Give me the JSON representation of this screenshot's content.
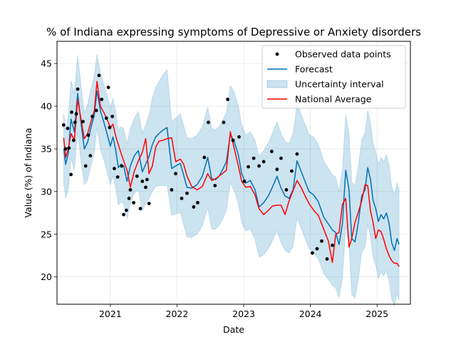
{
  "chart_data": {
    "type": "line",
    "title": "% of Indiana expressing symptoms of Depressive or Anxiety disorders",
    "xlabel": "Date",
    "ylabel": "Value (%) of Indiana",
    "xlim": [
      2020.2,
      2025.5
    ],
    "ylim": [
      16.8,
      47.6
    ],
    "xticks": [
      2021,
      2022,
      2023,
      2024,
      2025
    ],
    "xtick_labels": [
      "2021",
      "2022",
      "2023",
      "2024",
      "2025"
    ],
    "yticks": [
      20,
      25,
      30,
      35,
      40,
      45
    ],
    "ytick_labels": [
      "20",
      "25",
      "30",
      "35",
      "40",
      "45"
    ],
    "grid": true,
    "legend_position": "top-right",
    "colors": {
      "observed": "#000000",
      "forecast": "#0072B2",
      "band_fill": "#0072B2",
      "national": "#ff0000"
    },
    "legend": [
      {
        "label": "Observed data points",
        "kind": "marker",
        "color_key": "observed"
      },
      {
        "label": "Forecast",
        "kind": "line",
        "color_key": "forecast"
      },
      {
        "label": "Uncertainty interval",
        "kind": "patch",
        "color_key": "band_fill"
      },
      {
        "label": "National Average",
        "kind": "line",
        "color_key": "national"
      }
    ],
    "series": [
      {
        "name": "Observed data points",
        "style": "scatter",
        "points": [
          [
            2020.3,
            37.8
          ],
          [
            2020.33,
            35.0
          ],
          [
            2020.36,
            37.4
          ],
          [
            2020.38,
            35.1
          ],
          [
            2020.41,
            32.0
          ],
          [
            2020.42,
            39.3
          ],
          [
            2020.45,
            36.0
          ],
          [
            2020.47,
            38.1
          ],
          [
            2020.49,
            39.1
          ],
          [
            2020.51,
            42.0
          ],
          [
            2020.59,
            38.2
          ],
          [
            2020.63,
            33.0
          ],
          [
            2020.67,
            36.6
          ],
          [
            2020.7,
            34.2
          ],
          [
            2020.73,
            38.8
          ],
          [
            2020.79,
            39.5
          ],
          [
            2020.83,
            43.6
          ],
          [
            2020.87,
            40.8
          ],
          [
            2020.94,
            38.6
          ],
          [
            2020.97,
            42.2
          ],
          [
            2020.99,
            37.5
          ],
          [
            2021.03,
            38.8
          ],
          [
            2021.06,
            32.7
          ],
          [
            2021.11,
            31.7
          ],
          [
            2021.17,
            33.0
          ],
          [
            2021.2,
            27.3
          ],
          [
            2021.24,
            27.8
          ],
          [
            2021.28,
            29.2
          ],
          [
            2021.3,
            30.2
          ],
          [
            2021.35,
            28.7
          ],
          [
            2021.4,
            31.8
          ],
          [
            2021.45,
            28.0
          ],
          [
            2021.48,
            31.2
          ],
          [
            2021.53,
            30.5
          ],
          [
            2021.55,
            31.4
          ],
          [
            2021.58,
            28.6
          ],
          [
            2021.92,
            30.2
          ],
          [
            2021.98,
            32.1
          ],
          [
            2022.07,
            29.2
          ],
          [
            2022.15,
            29.8
          ],
          [
            2022.25,
            28.2
          ],
          [
            2022.31,
            28.7
          ],
          [
            2022.41,
            34.0
          ],
          [
            2022.47,
            38.1
          ],
          [
            2022.57,
            30.7
          ],
          [
            2022.7,
            38.1
          ],
          [
            2022.76,
            40.8
          ],
          [
            2022.84,
            36.0
          ],
          [
            2022.93,
            36.4
          ],
          [
            2023.01,
            31.2
          ],
          [
            2023.07,
            32.9
          ],
          [
            2023.15,
            33.9
          ],
          [
            2023.23,
            33.0
          ],
          [
            2023.3,
            33.5
          ],
          [
            2023.42,
            34.7
          ],
          [
            2023.5,
            32.6
          ],
          [
            2023.56,
            33.9
          ],
          [
            2023.64,
            30.2
          ],
          [
            2023.72,
            32.4
          ],
          [
            2023.8,
            34.4
          ],
          [
            2024.03,
            22.8
          ],
          [
            2024.1,
            23.3
          ],
          [
            2024.17,
            24.2
          ],
          [
            2024.25,
            22.1
          ],
          [
            2024.33,
            23.7
          ]
        ]
      },
      {
        "name": "Forecast",
        "style": "line",
        "x": [
          2020.3,
          2020.33,
          2020.37,
          2020.41,
          2020.46,
          2020.51,
          2020.56,
          2020.61,
          2020.66,
          2020.71,
          2020.76,
          2020.8,
          2020.85,
          2020.9,
          2020.95,
          2021.0,
          2021.04,
          2021.08,
          2021.12,
          2021.16,
          2021.2,
          2021.25,
          2021.3,
          2021.36,
          2021.42,
          2021.48,
          2021.53,
          2021.58,
          2021.63,
          2021.68,
          2021.73,
          2021.79,
          2021.85,
          2021.92,
          2021.98,
          2022.05,
          2022.1,
          2022.15,
          2022.22,
          2022.3,
          2022.38,
          2022.46,
          2022.52,
          2022.58,
          2022.63,
          2022.68,
          2022.74,
          2022.8,
          2022.86,
          2022.92,
          2022.97,
          2023.03,
          2023.1,
          2023.17,
          2023.23,
          2023.3,
          2023.37,
          2023.43,
          2023.5,
          2023.56,
          2023.62,
          2023.68,
          2023.74,
          2023.8,
          2023.86,
          2023.92,
          2023.98,
          2024.05,
          2024.12,
          2024.2,
          2024.27,
          2024.33,
          2024.38,
          2024.43,
          2024.48,
          2024.53,
          2024.58,
          2024.62,
          2024.67,
          2024.72,
          2024.77,
          2024.82,
          2024.86,
          2024.9,
          2024.94,
          2024.98,
          2025.02,
          2025.06,
          2025.1,
          2025.14,
          2025.18,
          2025.22,
          2025.26,
          2025.3,
          2025.33
        ],
        "y": [
          35.0,
          33.2,
          34.5,
          38.5,
          37.0,
          41.5,
          38.0,
          35.0,
          35.8,
          37.5,
          39.0,
          41.8,
          39.5,
          38.2,
          36.8,
          35.3,
          36.4,
          34.9,
          32.8,
          33.2,
          33.0,
          31.2,
          33.0,
          34.2,
          34.8,
          32.3,
          33.2,
          34.1,
          35.5,
          36.4,
          36.8,
          37.2,
          37.5,
          32.7,
          33.0,
          33.3,
          31.9,
          30.5,
          30.4,
          30.8,
          31.8,
          34.0,
          31.5,
          31.4,
          31.8,
          32.5,
          33.5,
          36.7,
          35.8,
          34.3,
          32.1,
          31.0,
          31.3,
          30.2,
          28.2,
          28.7,
          29.5,
          30.5,
          31.8,
          30.4,
          29.5,
          29.2,
          30.2,
          33.6,
          32.4,
          31.2,
          30.0,
          29.6,
          28.8,
          27.0,
          26.2,
          25.5,
          25.2,
          23.8,
          26.2,
          32.5,
          30.2,
          24.5,
          24.1,
          26.4,
          29.5,
          30.2,
          32.8,
          31.5,
          29.0,
          28.0,
          26.5,
          27.3,
          26.8,
          27.5,
          26.3,
          24.0,
          23.1,
          24.5,
          23.8
        ]
      },
      {
        "name": "Uncertainty interval",
        "style": "band",
        "x": [
          2020.3,
          2020.33,
          2020.37,
          2020.41,
          2020.46,
          2020.51,
          2020.56,
          2020.61,
          2020.66,
          2020.71,
          2020.76,
          2020.8,
          2020.85,
          2020.9,
          2020.95,
          2021.0,
          2021.04,
          2021.08,
          2021.12,
          2021.16,
          2021.2,
          2021.25,
          2021.3,
          2021.36,
          2021.42,
          2021.48,
          2021.53,
          2021.58,
          2021.63,
          2021.68,
          2021.73,
          2021.79,
          2021.85,
          2021.92,
          2021.98,
          2022.05,
          2022.1,
          2022.15,
          2022.22,
          2022.3,
          2022.38,
          2022.46,
          2022.52,
          2022.58,
          2022.63,
          2022.68,
          2022.74,
          2022.8,
          2022.86,
          2022.92,
          2022.97,
          2023.03,
          2023.1,
          2023.17,
          2023.23,
          2023.3,
          2023.37,
          2023.43,
          2023.5,
          2023.56,
          2023.62,
          2023.68,
          2023.74,
          2023.8,
          2023.86,
          2023.92,
          2023.98,
          2024.05,
          2024.12,
          2024.2,
          2024.27,
          2024.33,
          2024.38,
          2024.43,
          2024.48,
          2024.53,
          2024.58,
          2024.62,
          2024.67,
          2024.72,
          2024.77,
          2024.82,
          2024.86,
          2024.9,
          2024.94,
          2024.98,
          2025.02,
          2025.06,
          2025.1,
          2025.14,
          2025.18,
          2025.22,
          2025.26,
          2025.3,
          2025.33
        ],
        "lower": [
          31.0,
          29.2,
          30.2,
          34.0,
          32.5,
          37.0,
          33.5,
          30.8,
          31.4,
          33.0,
          34.6,
          37.5,
          35.0,
          33.8,
          32.3,
          30.8,
          31.8,
          30.4,
          28.4,
          28.8,
          28.6,
          26.8,
          28.6,
          29.8,
          30.2,
          27.7,
          28.6,
          29.2,
          30.0,
          30.6,
          30.7,
          30.7,
          30.7,
          27.2,
          27.4,
          27.5,
          26.1,
          24.7,
          24.6,
          25.0,
          26.0,
          28.1,
          25.6,
          25.6,
          26.0,
          26.7,
          27.8,
          31.0,
          30.0,
          28.6,
          26.4,
          25.4,
          25.6,
          24.4,
          22.3,
          22.6,
          23.3,
          24.2,
          25.4,
          24.0,
          23.1,
          22.8,
          23.6,
          26.9,
          25.7,
          24.5,
          23.3,
          22.8,
          22.1,
          20.4,
          19.7,
          19.0,
          18.7,
          17.6,
          19.8,
          26.0,
          23.6,
          17.9,
          17.5,
          19.8,
          22.9,
          23.5,
          26.1,
          24.8,
          22.3,
          21.4,
          19.8,
          20.6,
          20.1,
          20.7,
          19.5,
          17.4,
          16.6,
          18.0,
          17.3
        ],
        "upper": [
          39.2,
          37.2,
          38.8,
          43.0,
          41.5,
          46.0,
          42.5,
          39.2,
          40.3,
          42.0,
          43.6,
          46.1,
          44.0,
          42.6,
          41.3,
          39.8,
          40.9,
          39.4,
          37.2,
          37.6,
          37.4,
          35.6,
          37.4,
          38.6,
          39.4,
          36.9,
          37.8,
          39.0,
          41.0,
          42.2,
          42.9,
          43.7,
          44.3,
          38.2,
          38.6,
          39.1,
          37.7,
          36.3,
          36.2,
          36.6,
          37.6,
          39.9,
          37.4,
          37.2,
          37.6,
          38.3,
          39.2,
          42.4,
          41.6,
          40.0,
          37.8,
          36.6,
          37.0,
          36.0,
          34.1,
          34.8,
          35.7,
          36.8,
          38.2,
          36.8,
          35.9,
          35.6,
          36.8,
          40.3,
          39.1,
          37.9,
          36.7,
          36.4,
          35.5,
          33.6,
          32.7,
          32.0,
          31.7,
          30.0,
          32.6,
          39.0,
          36.8,
          31.1,
          30.7,
          33.0,
          36.1,
          36.9,
          39.5,
          38.2,
          35.7,
          34.6,
          33.2,
          34.0,
          33.5,
          34.3,
          33.1,
          30.6,
          29.6,
          31.0,
          30.3
        ]
      },
      {
        "name": "National Average",
        "style": "line",
        "x": [
          2020.3,
          2020.33,
          2020.37,
          2020.41,
          2020.46,
          2020.51,
          2020.56,
          2020.61,
          2020.66,
          2020.71,
          2020.76,
          2020.8,
          2020.85,
          2020.9,
          2020.95,
          2021.0,
          2021.04,
          2021.08,
          2021.12,
          2021.16,
          2021.2,
          2021.25,
          2021.3,
          2021.36,
          2021.42,
          2021.48,
          2021.53,
          2021.58,
          2021.63,
          2021.68,
          2021.73,
          2021.79,
          2021.85,
          2021.92,
          2021.98,
          2022.05,
          2022.1,
          2022.15,
          2022.22,
          2022.3,
          2022.38,
          2022.46,
          2022.52,
          2022.58,
          2022.63,
          2022.68,
          2022.74,
          2022.8,
          2022.86,
          2022.92,
          2022.97,
          2023.03,
          2023.1,
          2023.17,
          2023.23,
          2023.3,
          2023.37,
          2023.43,
          2023.5,
          2023.56,
          2023.62,
          2023.68,
          2023.74,
          2023.8,
          2023.86,
          2023.92,
          2023.98,
          2024.05,
          2024.12,
          2024.2,
          2024.27,
          2024.33,
          2024.38,
          2024.43,
          2024.48,
          2024.53,
          2024.58,
          2024.62,
          2024.67,
          2024.72,
          2024.77,
          2024.82,
          2024.86,
          2024.9,
          2024.94,
          2024.98,
          2025.02,
          2025.06,
          2025.1,
          2025.14,
          2025.18,
          2025.22,
          2025.26,
          2025.3,
          2025.33
        ],
        "y": [
          36.3,
          34.0,
          35.0,
          36.8,
          36.0,
          40.8,
          38.5,
          36.2,
          36.8,
          38.2,
          39.5,
          42.9,
          40.0,
          39.3,
          38.5,
          37.5,
          37.9,
          36.5,
          35.5,
          34.5,
          33.6,
          32.5,
          30.5,
          32.4,
          33.6,
          34.6,
          36.2,
          32.1,
          33.0,
          35.2,
          35.9,
          36.0,
          36.2,
          36.3,
          33.5,
          33.8,
          33.2,
          31.8,
          30.6,
          30.2,
          30.6,
          32.1,
          31.3,
          31.5,
          31.8,
          32.1,
          32.5,
          37.0,
          35.0,
          33.0,
          31.2,
          30.5,
          30.6,
          29.6,
          28.0,
          27.3,
          27.8,
          28.3,
          28.4,
          28.4,
          27.3,
          28.9,
          30.1,
          31.3,
          30.5,
          29.5,
          28.6,
          27.8,
          27.2,
          25.6,
          24.2,
          21.7,
          25.0,
          25.2,
          28.5,
          29.2,
          23.5,
          24.5,
          26.4,
          27.6,
          28.9,
          30.8,
          30.7,
          27.8,
          26.4,
          24.5,
          25.5,
          25.3,
          24.4,
          23.3,
          22.5,
          21.9,
          21.6,
          21.6,
          21.2
        ]
      }
    ]
  }
}
